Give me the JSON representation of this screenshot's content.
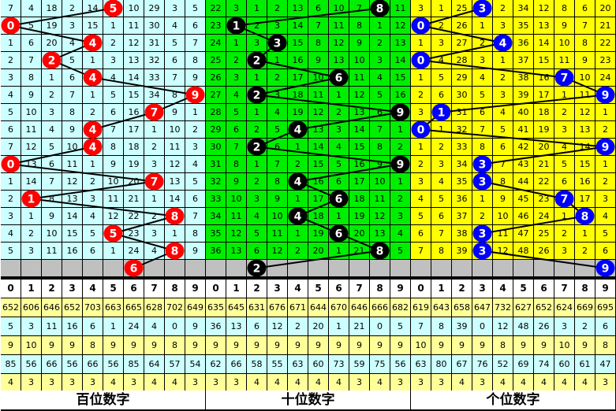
{
  "sections": [
    {
      "title": "百位数字",
      "bg": "#ccffff",
      "ball_color": "#ff0000",
      "draws": [
        5,
        0,
        4,
        2,
        4,
        9,
        7,
        4,
        4,
        0,
        7,
        1,
        8,
        5,
        8,
        6
      ],
      "rows": [
        [
          "7",
          "4",
          "18",
          "2",
          "14",
          "",
          "10",
          "29",
          "3",
          "5"
        ],
        [
          "",
          "5",
          "19",
          "3",
          "15",
          "1",
          "11",
          "30",
          "4",
          "6"
        ],
        [
          "1",
          "6",
          "20",
          "4",
          "",
          "2",
          "12",
          "31",
          "5",
          "7"
        ],
        [
          "2",
          "7",
          "",
          "5",
          "1",
          "3",
          "13",
          "32",
          "6",
          "8"
        ],
        [
          "3",
          "8",
          "1",
          "6",
          "",
          "4",
          "14",
          "33",
          "7",
          "9"
        ],
        [
          "4",
          "9",
          "2",
          "7",
          "1",
          "5",
          "15",
          "34",
          "8",
          ""
        ],
        [
          "5",
          "10",
          "3",
          "8",
          "2",
          "6",
          "16",
          "",
          "9",
          "1"
        ],
        [
          "6",
          "11",
          "4",
          "9",
          "",
          "7",
          "17",
          "1",
          "10",
          "2"
        ],
        [
          "7",
          "12",
          "5",
          "10",
          "",
          "8",
          "18",
          "2",
          "11",
          "3"
        ],
        [
          "",
          "13",
          "6",
          "11",
          "1",
          "9",
          "19",
          "3",
          "12",
          "4"
        ],
        [
          "1",
          "14",
          "7",
          "12",
          "2",
          "10",
          "20",
          "",
          "13",
          "5"
        ],
        [
          "2",
          "",
          "8",
          "13",
          "3",
          "11",
          "21",
          "1",
          "14",
          "6"
        ],
        [
          "3",
          "1",
          "9",
          "14",
          "4",
          "12",
          "22",
          "2",
          "",
          "7"
        ],
        [
          "4",
          "2",
          "10",
          "15",
          "5",
          "",
          "23",
          "3",
          "1",
          "8"
        ],
        [
          "5",
          "3",
          "11",
          "16",
          "6",
          "1",
          "24",
          "4",
          "",
          "9"
        ]
      ],
      "stats_header": [
        "0",
        "1",
        "2",
        "3",
        "4",
        "5",
        "6",
        "7",
        "8",
        "9"
      ],
      "stats": [
        [
          "652",
          "606",
          "646",
          "652",
          "703",
          "663",
          "665",
          "628",
          "702",
          "649"
        ],
        [
          "5",
          "3",
          "11",
          "16",
          "6",
          "1",
          "24",
          "4",
          "0",
          "9"
        ],
        [
          "9",
          "10",
          "9",
          "9",
          "8",
          "9",
          "9",
          "9",
          "8",
          "9"
        ],
        [
          "85",
          "56",
          "66",
          "56",
          "66",
          "56",
          "85",
          "64",
          "57",
          "54"
        ],
        [
          "4",
          "3",
          "3",
          "3",
          "3",
          "4",
          "3",
          "4",
          "4",
          "3"
        ]
      ]
    },
    {
      "title": "十位数字",
      "bg": "#00ee00",
      "ball_color": "#000000",
      "draws": [
        8,
        1,
        3,
        2,
        6,
        2,
        9,
        4,
        2,
        9,
        4,
        6,
        4,
        6,
        8,
        2
      ],
      "rows": [
        [
          "22",
          "3",
          "1",
          "2",
          "13",
          "6",
          "10",
          "7",
          "",
          "11"
        ],
        [
          "23",
          "",
          "2",
          "3",
          "14",
          "7",
          "11",
          "8",
          "1",
          "12"
        ],
        [
          "24",
          "1",
          "3",
          "",
          "15",
          "8",
          "12",
          "9",
          "2",
          "13"
        ],
        [
          "25",
          "2",
          "",
          "1",
          "16",
          "9",
          "13",
          "10",
          "3",
          "14"
        ],
        [
          "26",
          "3",
          "1",
          "2",
          "17",
          "10",
          "",
          "11",
          "4",
          "15"
        ],
        [
          "27",
          "4",
          "",
          "3",
          "18",
          "11",
          "1",
          "12",
          "5",
          "16"
        ],
        [
          "28",
          "5",
          "1",
          "4",
          "19",
          "12",
          "2",
          "13",
          "6",
          ""
        ],
        [
          "29",
          "6",
          "2",
          "5",
          "",
          "13",
          "3",
          "14",
          "7",
          "1"
        ],
        [
          "30",
          "7",
          "",
          "6",
          "1",
          "14",
          "4",
          "15",
          "8",
          "2"
        ],
        [
          "31",
          "8",
          "1",
          "7",
          "2",
          "15",
          "5",
          "16",
          "9",
          ""
        ],
        [
          "32",
          "9",
          "2",
          "8",
          "",
          "16",
          "6",
          "17",
          "10",
          "1"
        ],
        [
          "33",
          "10",
          "3",
          "9",
          "1",
          "17",
          "",
          "18",
          "11",
          "2"
        ],
        [
          "34",
          "11",
          "4",
          "10",
          "",
          "18",
          "1",
          "19",
          "12",
          "3"
        ],
        [
          "35",
          "12",
          "5",
          "11",
          "1",
          "19",
          "",
          "20",
          "13",
          "4"
        ],
        [
          "36",
          "13",
          "6",
          "12",
          "2",
          "20",
          "1",
          "21",
          "",
          "5"
        ]
      ],
      "stats_header": [
        "0",
        "1",
        "2",
        "3",
        "4",
        "5",
        "6",
        "7",
        "8",
        "9"
      ],
      "stats": [
        [
          "635",
          "645",
          "631",
          "676",
          "671",
          "644",
          "670",
          "646",
          "666",
          "682"
        ],
        [
          "36",
          "13",
          "6",
          "12",
          "2",
          "20",
          "1",
          "21",
          "0",
          "5"
        ],
        [
          "9",
          "9",
          "9",
          "9",
          "9",
          "9",
          "9",
          "9",
          "9",
          "9"
        ],
        [
          "62",
          "66",
          "58",
          "55",
          "63",
          "60",
          "73",
          "59",
          "75",
          "56"
        ],
        [
          "3",
          "3",
          "4",
          "4",
          "4",
          "4",
          "4",
          "3",
          "4",
          "3"
        ]
      ]
    },
    {
      "title": "个位数字",
      "bg": "#ffff00",
      "ball_color": "#0000ff",
      "draws": [
        3,
        0,
        4,
        0,
        7,
        9,
        1,
        0,
        9,
        3,
        3,
        7,
        8,
        3,
        3,
        9
      ],
      "rows": [
        [
          "3",
          "1",
          "25",
          "",
          "2",
          "34",
          "12",
          "8",
          "6",
          "20"
        ],
        [
          "",
          "2",
          "26",
          "1",
          "3",
          "35",
          "13",
          "9",
          "7",
          "21"
        ],
        [
          "1",
          "3",
          "27",
          "2",
          "",
          "36",
          "14",
          "10",
          "8",
          "22"
        ],
        [
          "",
          "4",
          "28",
          "3",
          "1",
          "37",
          "15",
          "11",
          "9",
          "23"
        ],
        [
          "1",
          "5",
          "29",
          "4",
          "2",
          "38",
          "16",
          "",
          "10",
          "24"
        ],
        [
          "2",
          "6",
          "30",
          "5",
          "3",
          "39",
          "17",
          "1",
          "11",
          ""
        ],
        [
          "3",
          "",
          "31",
          "6",
          "4",
          "40",
          "18",
          "2",
          "12",
          "1"
        ],
        [
          "",
          "1",
          "32",
          "7",
          "5",
          "41",
          "19",
          "3",
          "13",
          "2"
        ],
        [
          "1",
          "2",
          "33",
          "8",
          "6",
          "42",
          "20",
          "4",
          "14",
          ""
        ],
        [
          "2",
          "3",
          "34",
          "",
          "7",
          "43",
          "21",
          "5",
          "15",
          "1"
        ],
        [
          "3",
          "4",
          "35",
          "",
          "8",
          "44",
          "22",
          "6",
          "16",
          "2"
        ],
        [
          "4",
          "5",
          "36",
          "1",
          "9",
          "45",
          "23",
          "",
          "17",
          "3"
        ],
        [
          "5",
          "6",
          "37",
          "2",
          "10",
          "46",
          "24",
          "1",
          "",
          "4"
        ],
        [
          "6",
          "7",
          "38",
          "",
          "11",
          "47",
          "25",
          "2",
          "1",
          "5"
        ],
        [
          "7",
          "8",
          "39",
          "",
          "12",
          "48",
          "26",
          "3",
          "2",
          "6"
        ]
      ],
      "stats_header": [
        "0",
        "1",
        "2",
        "3",
        "4",
        "5",
        "6",
        "7",
        "8",
        "9"
      ],
      "stats": [
        [
          "619",
          "643",
          "658",
          "647",
          "732",
          "627",
          "652",
          "624",
          "669",
          "695"
        ],
        [
          "7",
          "8",
          "39",
          "0",
          "12",
          "48",
          "26",
          "3",
          "2",
          "6"
        ],
        [
          "10",
          "9",
          "9",
          "9",
          "8",
          "9",
          "9",
          "10",
          "9",
          "8"
        ],
        [
          "63",
          "80",
          "67",
          "76",
          "52",
          "69",
          "74",
          "60",
          "61",
          "47"
        ],
        [
          "3",
          "3",
          "4",
          "3",
          "4",
          "4",
          "4",
          "4",
          "4",
          "3"
        ]
      ]
    }
  ],
  "colors": {
    "pending_row": "#c0c0c0",
    "stats_yellow": "#ffff99",
    "stats_cyan": "#ccffff",
    "line": "#000000"
  }
}
